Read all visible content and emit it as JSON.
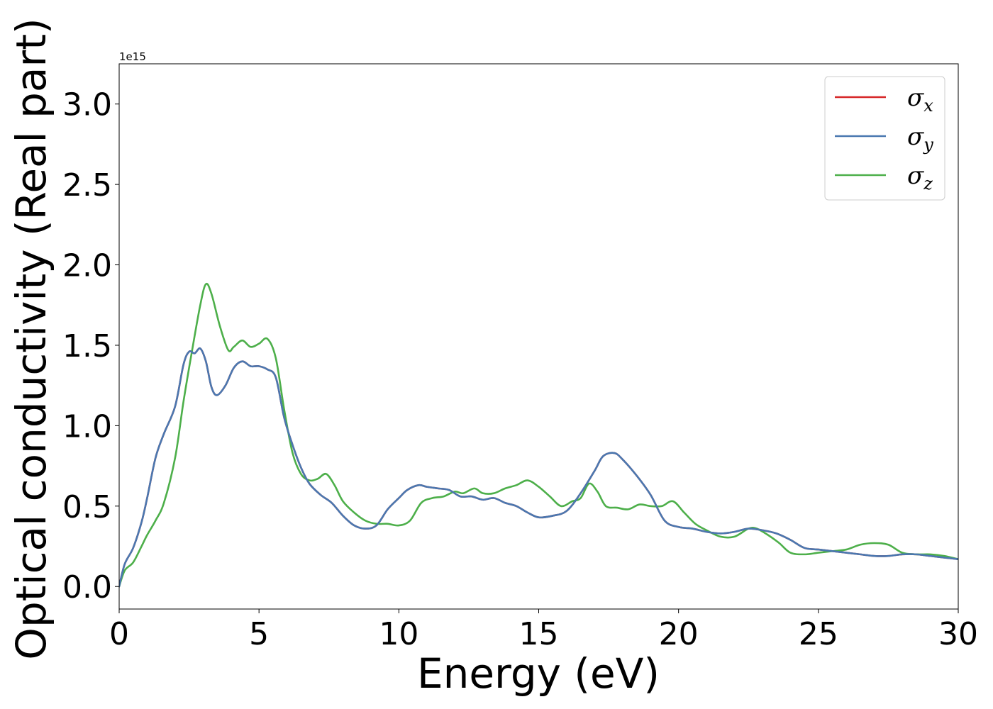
{
  "chart_data": {
    "type": "line",
    "title": "",
    "xlabel": "Energy (eV)",
    "ylabel": "Optical conductivity (Real part)",
    "y_offset_text": "1e15",
    "xlim": [
      0,
      30
    ],
    "ylim": [
      -0.14,
      3.25
    ],
    "y_scale_factor": 1000000000000000.0,
    "x_ticks": [
      0,
      5,
      10,
      15,
      20,
      25,
      30
    ],
    "x_tick_labels": [
      "0",
      "5",
      "10",
      "15",
      "20",
      "25",
      "30"
    ],
    "y_ticks": [
      0.0,
      0.5,
      1.0,
      1.5,
      2.0,
      2.5,
      3.0
    ],
    "y_tick_labels": [
      "0.0",
      "0.5",
      "1.0",
      "1.5",
      "2.0",
      "2.5",
      "3.0"
    ],
    "grid": false,
    "legend_position": "top-right",
    "series": [
      {
        "name": "σx",
        "symbol": "σ",
        "subscript": "x",
        "color": "#d62728",
        "x": [
          0,
          0.2,
          0.5,
          0.8,
          1.0,
          1.3,
          1.6,
          2.0,
          2.3,
          2.5,
          2.7,
          2.9,
          3.1,
          3.3,
          3.5,
          3.8,
          4.1,
          4.4,
          4.7,
          5.0,
          5.3,
          5.6,
          5.9,
          6.2,
          6.5,
          6.8,
          7.2,
          7.6,
          8.0,
          8.4,
          8.8,
          9.2,
          9.6,
          10.0,
          10.3,
          10.7,
          11.0,
          11.4,
          11.8,
          12.2,
          12.6,
          13.0,
          13.4,
          13.8,
          14.2,
          14.6,
          15.0,
          15.5,
          16.0,
          16.5,
          17.0,
          17.3,
          17.7,
          18.0,
          18.5,
          19.0,
          19.5,
          20.0,
          20.5,
          21.0,
          21.5,
          22.0,
          22.5,
          23.0,
          23.5,
          24.0,
          24.5,
          25.0,
          25.5,
          26.0,
          26.5,
          27.0,
          27.5,
          28.0,
          28.5,
          29.0,
          29.5,
          30.0
        ],
        "values": [
          0.0,
          0.14,
          0.24,
          0.4,
          0.55,
          0.8,
          0.95,
          1.12,
          1.38,
          1.46,
          1.45,
          1.48,
          1.4,
          1.24,
          1.19,
          1.25,
          1.36,
          1.4,
          1.37,
          1.37,
          1.35,
          1.3,
          1.05,
          0.88,
          0.74,
          0.64,
          0.57,
          0.52,
          0.44,
          0.38,
          0.36,
          0.38,
          0.48,
          0.55,
          0.6,
          0.63,
          0.62,
          0.61,
          0.6,
          0.56,
          0.56,
          0.54,
          0.55,
          0.52,
          0.5,
          0.46,
          0.43,
          0.44,
          0.47,
          0.58,
          0.72,
          0.81,
          0.83,
          0.79,
          0.69,
          0.57,
          0.41,
          0.37,
          0.36,
          0.34,
          0.33,
          0.34,
          0.36,
          0.35,
          0.33,
          0.29,
          0.24,
          0.23,
          0.22,
          0.21,
          0.2,
          0.19,
          0.19,
          0.2,
          0.2,
          0.19,
          0.18,
          0.17
        ]
      },
      {
        "name": "σy",
        "symbol": "σ",
        "subscript": "y",
        "color": "#4a78b0",
        "x": [
          0,
          0.2,
          0.5,
          0.8,
          1.0,
          1.3,
          1.6,
          2.0,
          2.3,
          2.5,
          2.7,
          2.9,
          3.1,
          3.3,
          3.5,
          3.8,
          4.1,
          4.4,
          4.7,
          5.0,
          5.3,
          5.6,
          5.9,
          6.2,
          6.5,
          6.8,
          7.2,
          7.6,
          8.0,
          8.4,
          8.8,
          9.2,
          9.6,
          10.0,
          10.3,
          10.7,
          11.0,
          11.4,
          11.8,
          12.2,
          12.6,
          13.0,
          13.4,
          13.8,
          14.2,
          14.6,
          15.0,
          15.5,
          16.0,
          16.5,
          17.0,
          17.3,
          17.7,
          18.0,
          18.5,
          19.0,
          19.5,
          20.0,
          20.5,
          21.0,
          21.5,
          22.0,
          22.5,
          23.0,
          23.5,
          24.0,
          24.5,
          25.0,
          25.5,
          26.0,
          26.5,
          27.0,
          27.5,
          28.0,
          28.5,
          29.0,
          29.5,
          30.0
        ],
        "values": [
          0.0,
          0.14,
          0.24,
          0.4,
          0.55,
          0.8,
          0.95,
          1.12,
          1.38,
          1.46,
          1.45,
          1.48,
          1.4,
          1.24,
          1.19,
          1.25,
          1.36,
          1.4,
          1.37,
          1.37,
          1.35,
          1.3,
          1.05,
          0.88,
          0.74,
          0.64,
          0.57,
          0.52,
          0.44,
          0.38,
          0.36,
          0.38,
          0.48,
          0.55,
          0.6,
          0.63,
          0.62,
          0.61,
          0.6,
          0.56,
          0.56,
          0.54,
          0.55,
          0.52,
          0.5,
          0.46,
          0.43,
          0.44,
          0.47,
          0.58,
          0.72,
          0.81,
          0.83,
          0.79,
          0.69,
          0.57,
          0.41,
          0.37,
          0.36,
          0.34,
          0.33,
          0.34,
          0.36,
          0.35,
          0.33,
          0.29,
          0.24,
          0.23,
          0.22,
          0.21,
          0.2,
          0.19,
          0.19,
          0.2,
          0.2,
          0.19,
          0.18,
          0.17
        ]
      },
      {
        "name": "σz",
        "symbol": "σ",
        "subscript": "z",
        "color": "#4daf4a",
        "x": [
          0,
          0.2,
          0.5,
          0.8,
          1.0,
          1.3,
          1.6,
          2.0,
          2.3,
          2.6,
          2.9,
          3.1,
          3.3,
          3.6,
          3.9,
          4.1,
          4.4,
          4.7,
          5.0,
          5.3,
          5.6,
          5.9,
          6.2,
          6.5,
          6.8,
          7.1,
          7.4,
          7.7,
          8.0,
          8.4,
          8.8,
          9.2,
          9.6,
          10.0,
          10.4,
          10.8,
          11.2,
          11.6,
          12.0,
          12.3,
          12.7,
          13.0,
          13.4,
          13.8,
          14.2,
          14.6,
          15.0,
          15.4,
          15.8,
          16.2,
          16.5,
          16.8,
          17.1,
          17.4,
          17.8,
          18.2,
          18.6,
          19.0,
          19.4,
          19.8,
          20.2,
          20.6,
          21.0,
          21.5,
          22.0,
          22.5,
          22.8,
          23.2,
          23.6,
          24.0,
          24.5,
          25.0,
          25.5,
          26.0,
          26.5,
          27.0,
          27.5,
          28.0,
          28.5,
          29.0,
          29.5,
          30.0
        ],
        "values": [
          0.0,
          0.1,
          0.15,
          0.25,
          0.32,
          0.41,
          0.52,
          0.8,
          1.15,
          1.46,
          1.75,
          1.88,
          1.82,
          1.62,
          1.47,
          1.49,
          1.53,
          1.49,
          1.51,
          1.54,
          1.42,
          1.1,
          0.83,
          0.7,
          0.66,
          0.67,
          0.7,
          0.63,
          0.53,
          0.46,
          0.41,
          0.39,
          0.39,
          0.38,
          0.41,
          0.52,
          0.55,
          0.56,
          0.59,
          0.58,
          0.61,
          0.58,
          0.58,
          0.61,
          0.63,
          0.66,
          0.62,
          0.56,
          0.5,
          0.53,
          0.55,
          0.64,
          0.59,
          0.5,
          0.49,
          0.48,
          0.51,
          0.5,
          0.5,
          0.53,
          0.46,
          0.39,
          0.35,
          0.31,
          0.31,
          0.36,
          0.36,
          0.32,
          0.27,
          0.21,
          0.2,
          0.21,
          0.22,
          0.23,
          0.26,
          0.27,
          0.26,
          0.21,
          0.2,
          0.2,
          0.19,
          0.17
        ]
      }
    ]
  }
}
